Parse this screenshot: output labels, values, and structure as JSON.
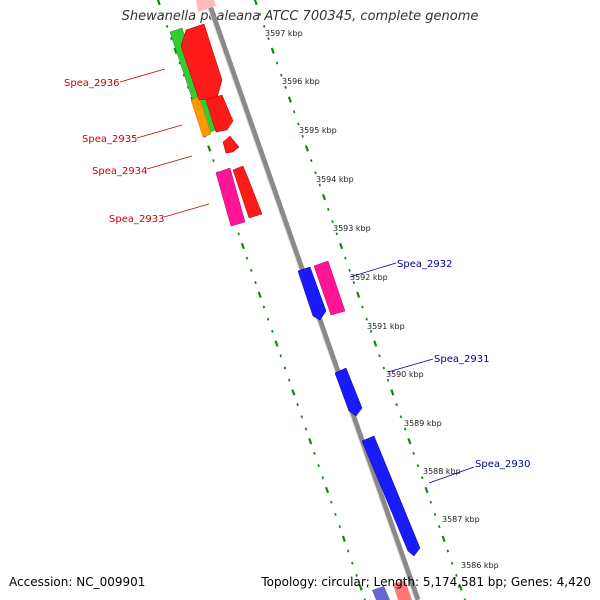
{
  "title": "Shewanella pealeana ATCC 700345, complete genome",
  "footer": {
    "accession": "Accession: NC_009901",
    "summary": "Topology: circular; Length: 5,174,581 bp; Genes: 4,420"
  },
  "colors": {
    "backbone": "#8a8a8a",
    "forward_cds": "#ff1a1a",
    "reverse_cds": "#1a1aff",
    "forward_label": "#cc0000",
    "reverse_label": "#000099",
    "pseudo_pink": "#ff1493",
    "green_track": "#33cc33",
    "orange_track": "#ff9900",
    "tick_green": "#118811"
  },
  "scale": {
    "unit": "kbp",
    "ticks": [
      "3597 kbp",
      "3596 kbp",
      "3595 kbp",
      "3594 kbp",
      "3593 kbp",
      "3592 kbp",
      "3591 kbp",
      "3590 kbp",
      "3589 kbp",
      "3588 kbp",
      "3587 kbp",
      "3586 kbp"
    ]
  },
  "labels": {
    "forward": [
      "Spea_2936",
      "Spea_2935",
      "Spea_2934",
      "Spea_2933"
    ],
    "reverse": [
      "Spea_2932",
      "Spea_2931",
      "Spea_2930"
    ]
  }
}
